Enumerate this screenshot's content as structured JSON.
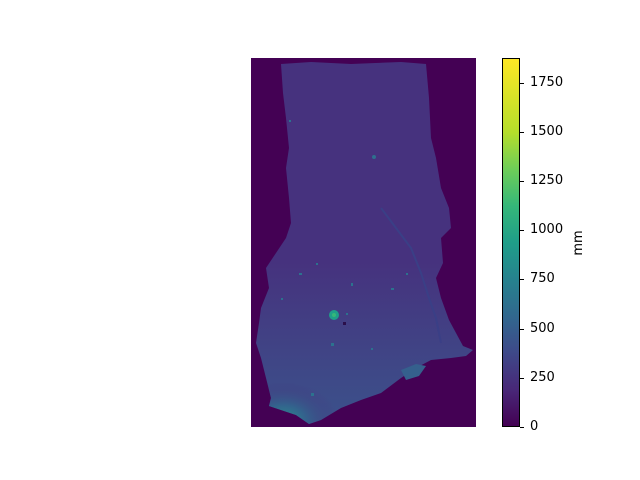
{
  "map": {
    "colormap": "viridis",
    "background_color": "#440154",
    "land_base_color": "#46327e",
    "high_value_color": "#21908d"
  },
  "colorbar": {
    "unit": "mm",
    "ticks": [
      "0",
      "250",
      "500",
      "750",
      "1000",
      "1250",
      "1500",
      "1750"
    ],
    "tick_values": [
      0,
      250,
      500,
      750,
      1000,
      1250,
      1500,
      1750
    ],
    "range": [
      0,
      1875
    ]
  }
}
